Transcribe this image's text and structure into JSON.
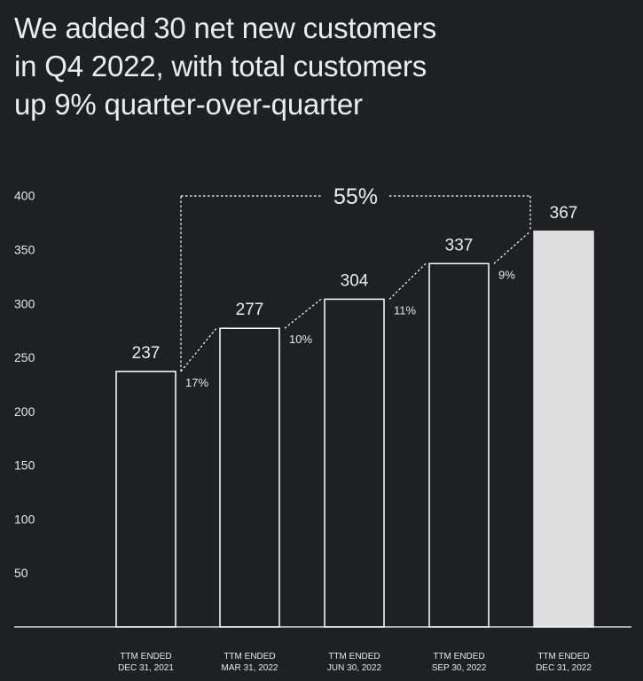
{
  "title_lines": [
    "We added 30 net new customers",
    "in Q4 2022, with total customers",
    "up 9% quarter-over-quarter"
  ],
  "chart_data": {
    "type": "bar",
    "title": "We added 30 net new customers in Q4 2022, with total customers up 9% quarter-over-quarter",
    "categories": [
      [
        "TTM ENDED",
        "DEC 31, 2021"
      ],
      [
        "TTM ENDED",
        "MAR 31, 2022"
      ],
      [
        "TTM ENDED",
        "JUN 30, 2022"
      ],
      [
        "TTM ENDED",
        "SEP 30, 2022"
      ],
      [
        "TTM ENDED",
        "DEC 31, 2022"
      ]
    ],
    "values": [
      237,
      277,
      304,
      337,
      367
    ],
    "value_labels": [
      "237",
      "277",
      "304",
      "337",
      "367"
    ],
    "growth_labels": [
      "17%",
      "10%",
      "11%",
      "9%"
    ],
    "total_growth_label": "55%",
    "y_ticks": [
      50,
      100,
      150,
      200,
      250,
      300,
      350,
      400
    ],
    "ylim": [
      0,
      400
    ],
    "xlabel": "",
    "ylabel": "",
    "colors": {
      "background": "#1e2124",
      "bar_outline": "#ffffff",
      "highlight_fill": "#dedede",
      "text": "#ececec"
    }
  }
}
